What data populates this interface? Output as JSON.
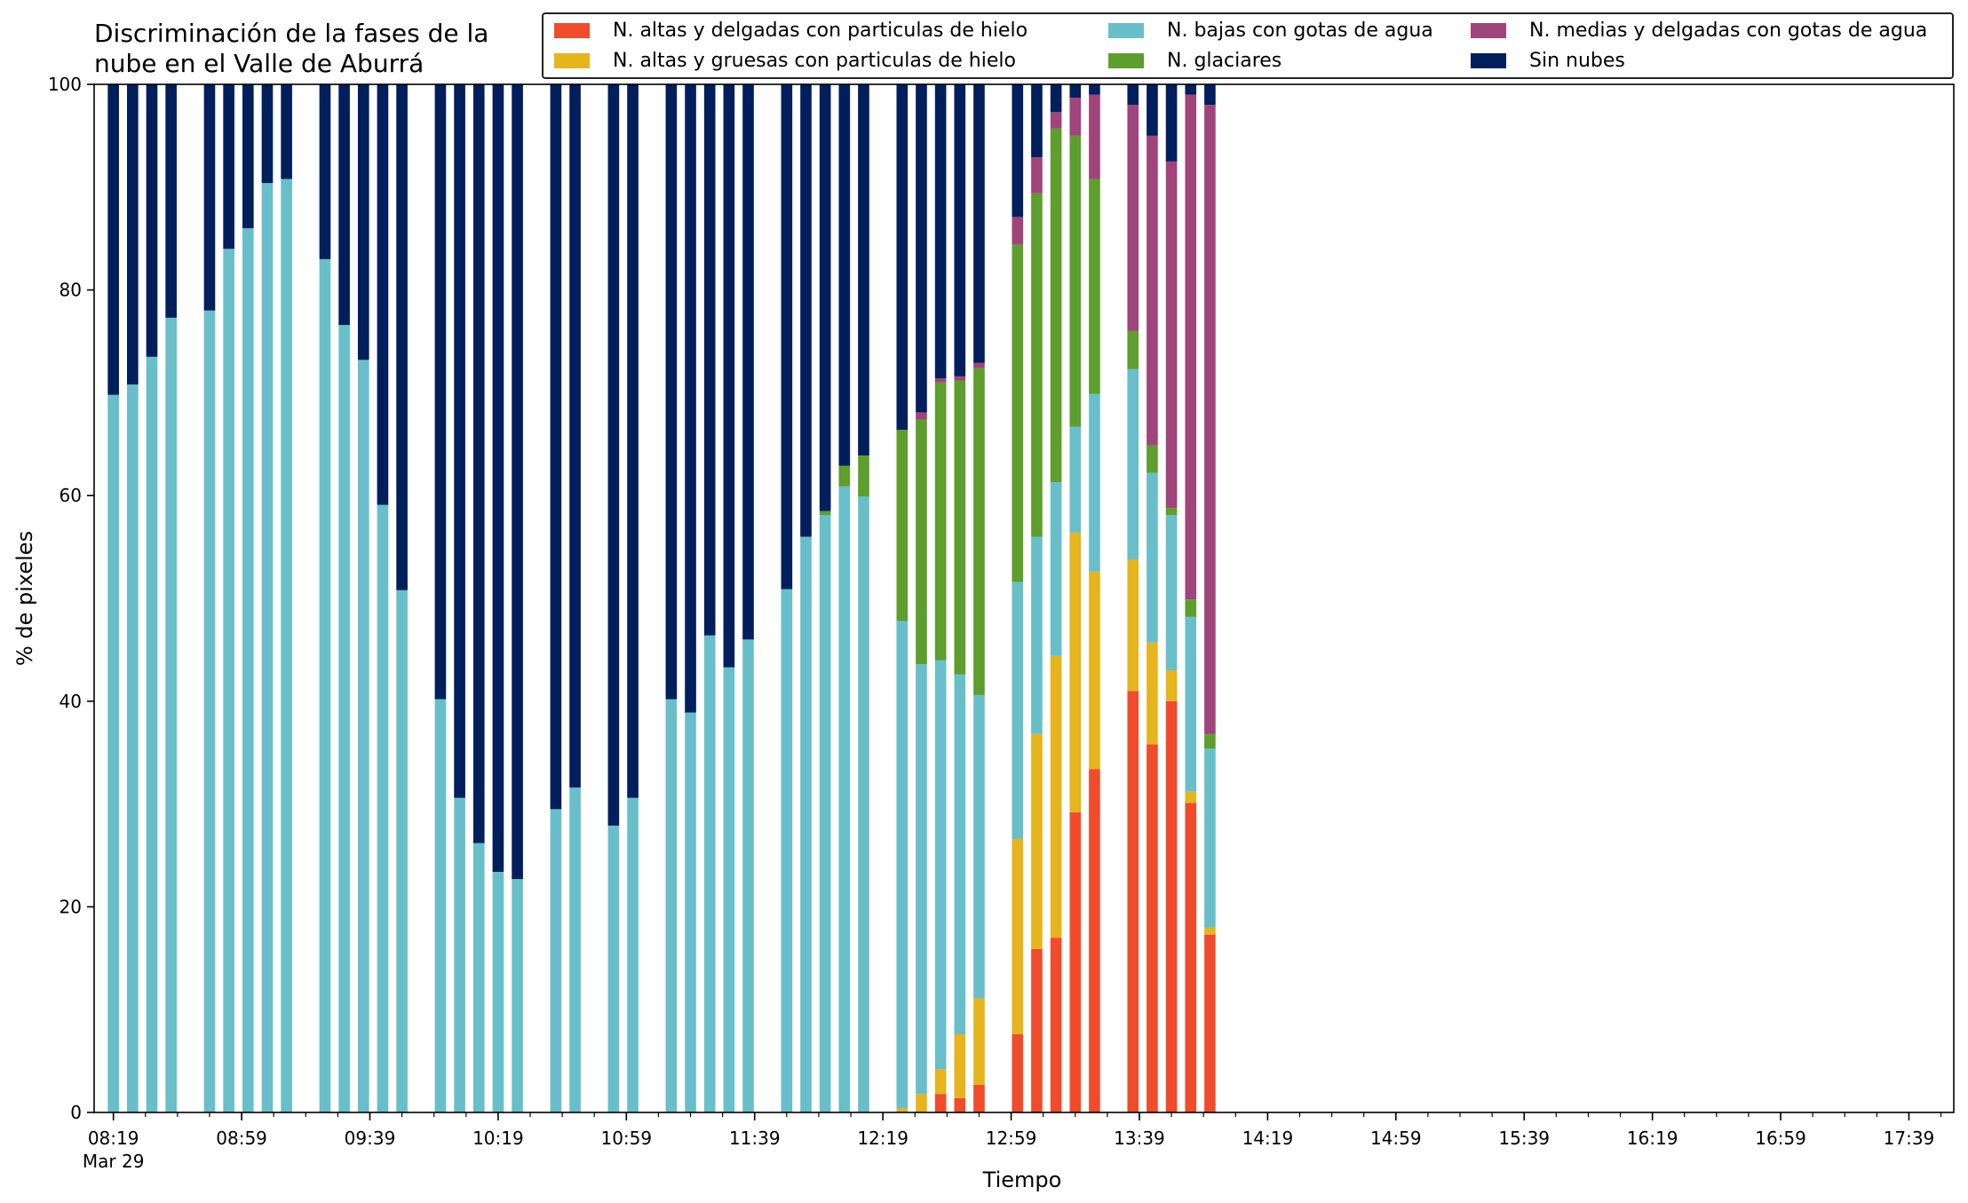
{
  "chart_data": {
    "type": "bar",
    "stacked": true,
    "title_lines": [
      "Discriminación de la fases de la",
      "nube en el Valle de Aburrá"
    ],
    "xlabel": "Tiempo",
    "ylabel": "% de pixeles",
    "ylim": [
      0,
      100
    ],
    "yticks": [
      0,
      20,
      40,
      60,
      80,
      100
    ],
    "xticks": [
      {
        "time": "08:19",
        "label": "08:19",
        "sublabel": "Mar 29"
      },
      {
        "time": "08:59",
        "label": "08:59"
      },
      {
        "time": "09:39",
        "label": "09:39"
      },
      {
        "time": "10:19",
        "label": "10:19"
      },
      {
        "time": "10:59",
        "label": "10:59"
      },
      {
        "time": "11:39",
        "label": "11:39"
      },
      {
        "time": "12:19",
        "label": "12:19"
      },
      {
        "time": "12:59",
        "label": "12:59"
      },
      {
        "time": "13:39",
        "label": "13:39"
      },
      {
        "time": "14:19",
        "label": "14:19"
      },
      {
        "time": "14:59",
        "label": "14:59"
      },
      {
        "time": "15:39",
        "label": "15:39"
      },
      {
        "time": "16:19",
        "label": "16:19"
      },
      {
        "time": "16:59",
        "label": "16:59"
      },
      {
        "time": "17:39",
        "label": "17:39"
      }
    ],
    "xlim": [
      "08:13",
      "17:53"
    ],
    "legend_placement": "top",
    "series": [
      {
        "name": "N. altas y delgadas con particulas de hielo",
        "color": "#f04c2b"
      },
      {
        "name": "N. altas y gruesas con particulas de hielo",
        "color": "#e6b41c"
      },
      {
        "name": "N. bajas con gotas de agua",
        "color": "#68bfca"
      },
      {
        "name": "N. glaciares",
        "color": "#5e9e2c"
      },
      {
        "name": "N. medias y delgadas con gotas de agua",
        "color": "#a0447c"
      },
      {
        "name": "Sin nubes",
        "color": "#001f5c"
      }
    ],
    "legend_order": [
      0,
      2,
      4,
      1,
      3,
      5
    ],
    "bars": [
      {
        "time": "08:19",
        "values": [
          0,
          0,
          69.8,
          0,
          0,
          30.2
        ]
      },
      {
        "time": "08:25",
        "values": [
          0,
          0,
          70.8,
          0,
          0,
          29.2
        ]
      },
      {
        "time": "08:31",
        "values": [
          0,
          0,
          73.5,
          0,
          0,
          26.5
        ]
      },
      {
        "time": "08:37",
        "values": [
          0,
          0,
          77.3,
          0,
          0,
          22.7
        ]
      },
      {
        "time": "08:49",
        "values": [
          0,
          0,
          78.0,
          0,
          0,
          22.0
        ]
      },
      {
        "time": "08:55",
        "values": [
          0,
          0,
          84.0,
          0,
          0,
          16.0
        ]
      },
      {
        "time": "09:01",
        "values": [
          0,
          0,
          86.0,
          0,
          0,
          14.0
        ]
      },
      {
        "time": "09:07",
        "values": [
          0,
          0,
          90.4,
          0,
          0,
          9.6
        ]
      },
      {
        "time": "09:13",
        "values": [
          0,
          0,
          90.8,
          0,
          0,
          9.2
        ]
      },
      {
        "time": "09:25",
        "values": [
          0,
          0,
          83.0,
          0,
          0,
          17.0
        ]
      },
      {
        "time": "09:31",
        "values": [
          0,
          0,
          76.6,
          0,
          0,
          23.4
        ]
      },
      {
        "time": "09:37",
        "values": [
          0,
          0,
          73.2,
          0,
          0,
          26.8
        ]
      },
      {
        "time": "09:43",
        "values": [
          0,
          0,
          59.1,
          0,
          0,
          40.9
        ]
      },
      {
        "time": "09:49",
        "values": [
          0,
          0,
          50.8,
          0,
          0,
          49.2
        ]
      },
      {
        "time": "10:01",
        "values": [
          0,
          0,
          40.2,
          0,
          0,
          59.8
        ]
      },
      {
        "time": "10:07",
        "values": [
          0,
          0,
          30.6,
          0,
          0,
          69.4
        ]
      },
      {
        "time": "10:13",
        "values": [
          0,
          0,
          26.2,
          0,
          0,
          73.8
        ]
      },
      {
        "time": "10:19",
        "values": [
          0,
          0,
          23.4,
          0,
          0,
          76.6
        ]
      },
      {
        "time": "10:25",
        "values": [
          0,
          0,
          22.7,
          0,
          0,
          77.3
        ]
      },
      {
        "time": "10:37",
        "values": [
          0,
          0,
          29.5,
          0,
          0,
          70.5
        ]
      },
      {
        "time": "10:43",
        "values": [
          0,
          0,
          31.6,
          0,
          0,
          68.4
        ]
      },
      {
        "time": "10:55",
        "values": [
          0,
          0,
          27.9,
          0,
          0,
          72.1
        ]
      },
      {
        "time": "11:01",
        "values": [
          0,
          0,
          30.6,
          0,
          0,
          69.4
        ]
      },
      {
        "time": "11:13",
        "values": [
          0,
          0,
          40.2,
          0,
          0,
          59.8
        ]
      },
      {
        "time": "11:19",
        "values": [
          0,
          0,
          38.9,
          0,
          0,
          61.1
        ]
      },
      {
        "time": "11:25",
        "values": [
          0,
          0,
          46.4,
          0,
          0,
          53.6
        ]
      },
      {
        "time": "11:31",
        "values": [
          0,
          0,
          43.3,
          0,
          0,
          56.7
        ]
      },
      {
        "time": "11:37",
        "values": [
          0,
          0,
          46.0,
          0,
          0,
          54.0
        ]
      },
      {
        "time": "11:49",
        "values": [
          0,
          0,
          50.9,
          0,
          0,
          49.1
        ]
      },
      {
        "time": "11:55",
        "values": [
          0,
          0,
          56.0,
          0,
          0,
          44.0
        ]
      },
      {
        "time": "12:01",
        "values": [
          0,
          0,
          58.1,
          0.4,
          0,
          41.5
        ]
      },
      {
        "time": "12:07",
        "values": [
          0,
          0,
          60.9,
          2.0,
          0,
          37.1
        ]
      },
      {
        "time": "12:13",
        "values": [
          0,
          0,
          59.9,
          4.0,
          0,
          36.1
        ]
      },
      {
        "time": "12:25",
        "values": [
          0,
          0.4,
          47.4,
          18.6,
          0,
          33.6
        ]
      },
      {
        "time": "12:31",
        "values": [
          0,
          1.8,
          41.8,
          23.8,
          0.7,
          31.9
        ]
      },
      {
        "time": "12:37",
        "values": [
          1.8,
          2.4,
          39.8,
          27.0,
          0.4,
          28.6
        ]
      },
      {
        "time": "12:43",
        "values": [
          1.4,
          6.2,
          35.0,
          28.6,
          0.4,
          28.4
        ]
      },
      {
        "time": "12:49",
        "values": [
          2.7,
          8.4,
          29.5,
          31.8,
          0.5,
          27.1
        ]
      },
      {
        "time": "13:01",
        "values": [
          7.6,
          19.0,
          25.0,
          32.8,
          2.7,
          12.9
        ]
      },
      {
        "time": "13:07",
        "values": [
          15.9,
          20.9,
          19.2,
          33.4,
          3.5,
          7.1
        ]
      },
      {
        "time": "13:13",
        "values": [
          17.0,
          27.4,
          16.9,
          34.4,
          1.6,
          2.7
        ]
      },
      {
        "time": "13:19",
        "values": [
          29.2,
          27.2,
          10.3,
          28.3,
          3.7,
          1.3
        ]
      },
      {
        "time": "13:25",
        "values": [
          33.4,
          19.2,
          17.3,
          20.9,
          8.2,
          1.0
        ]
      },
      {
        "time": "13:37",
        "values": [
          41.0,
          12.8,
          18.5,
          3.7,
          22.0,
          2.0
        ]
      },
      {
        "time": "13:43",
        "values": [
          35.8,
          9.9,
          16.5,
          2.7,
          30.1,
          5.0
        ]
      },
      {
        "time": "13:49",
        "values": [
          40.0,
          3.0,
          15.1,
          0.7,
          33.7,
          7.5
        ]
      },
      {
        "time": "13:55",
        "values": [
          30.1,
          1.1,
          17.0,
          1.7,
          49.1,
          1.0
        ]
      },
      {
        "time": "14:01",
        "values": [
          17.3,
          0.7,
          17.4,
          1.4,
          61.2,
          2.0
        ]
      }
    ]
  }
}
